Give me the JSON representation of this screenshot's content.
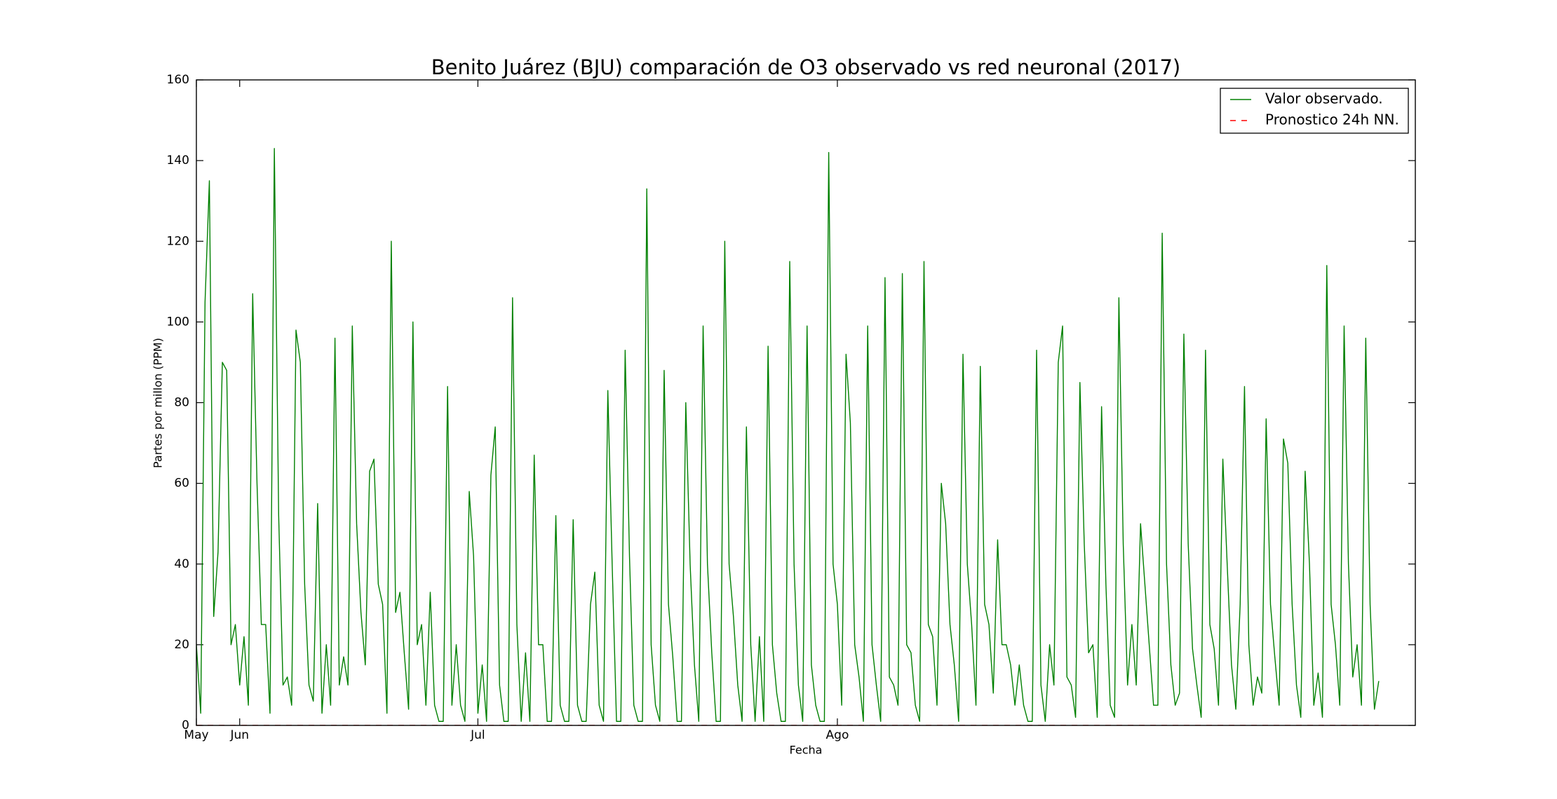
{
  "chart_data": {
    "type": "line",
    "title": "Benito Juárez (BJU) comparación de O3 observado vs red neuronal (2017)",
    "x_label": "Fecha",
    "y_label": "Partes por millon (PPM)",
    "categories": [
      "May",
      null,
      null,
      null,
      null,
      null,
      null,
      null,
      null,
      null,
      "Jun",
      null,
      null,
      null,
      null,
      null,
      null,
      null,
      null,
      null,
      null,
      null,
      null,
      null,
      null,
      null,
      null,
      null,
      null,
      null,
      null,
      null,
      null,
      null,
      null,
      null,
      null,
      null,
      null,
      null,
      null,
      null,
      null,
      null,
      null,
      null,
      null,
      null,
      null,
      null,
      null,
      null,
      null,
      null,
      null,
      null,
      null,
      null,
      null,
      null,
      null,
      null,
      null,
      null,
      null,
      "Jul",
      null,
      null,
      null,
      null,
      null,
      null,
      null,
      null,
      null,
      null,
      null,
      null,
      null,
      null,
      null,
      null,
      null,
      null,
      null,
      null,
      null,
      null,
      null,
      null,
      null,
      null,
      null,
      null,
      null,
      null,
      null,
      null,
      null,
      null,
      null,
      null,
      null,
      null,
      null,
      null,
      null,
      null,
      null,
      null,
      null,
      null,
      null,
      null,
      null,
      null,
      null,
      null,
      null,
      null,
      null,
      null,
      null,
      null,
      null,
      null,
      null,
      null,
      null,
      null,
      null,
      null,
      null,
      null,
      null,
      null,
      null,
      null,
      null,
      null,
      null,
      null,
      null,
      null,
      null,
      null,
      null,
      null,
      "Ago",
      null,
      null,
      null,
      null,
      null,
      null,
      null,
      null,
      null,
      null,
      null,
      null,
      null,
      null,
      null,
      null,
      null,
      null,
      null,
      null,
      null,
      null,
      null,
      null,
      null,
      null,
      null,
      null,
      null,
      null,
      null,
      null,
      null,
      null,
      null,
      null,
      null,
      null,
      null,
      null,
      null,
      null,
      null,
      null,
      null,
      null,
      null,
      null,
      null,
      null,
      null,
      null,
      null,
      null,
      null,
      null,
      null,
      null,
      null,
      null,
      null,
      null,
      null,
      null,
      null,
      null,
      null,
      null,
      null,
      null,
      null,
      null,
      null,
      null,
      null,
      null,
      null,
      null,
      null,
      null,
      null,
      null,
      null,
      null,
      null,
      null,
      null,
      null,
      null,
      null,
      null,
      null,
      null,
      null,
      null,
      null,
      null,
      null,
      null,
      null,
      null,
      null,
      null,
      null,
      null,
      null,
      null,
      null,
      null,
      null,
      null,
      null,
      null,
      null,
      null,
      null,
      null,
      null,
      null,
      null,
      null,
      null,
      null,
      null,
      null
    ],
    "series": [
      {
        "name": "Valor observado.",
        "color": "#008000",
        "dash": false,
        "values": [
          20,
          3,
          105,
          135,
          27,
          43,
          90,
          88,
          20,
          25,
          10,
          22,
          5,
          107,
          60,
          25,
          25,
          3,
          143,
          52,
          10,
          12,
          5,
          98,
          90,
          35,
          10,
          6,
          55,
          3,
          20,
          5,
          96,
          10,
          17,
          10,
          99,
          50,
          28,
          15,
          63,
          66,
          35,
          30,
          3,
          120,
          28,
          33,
          18,
          4,
          100,
          20,
          25,
          5,
          33,
          5,
          1,
          1,
          84,
          5,
          20,
          5,
          1,
          58,
          42,
          3,
          15,
          1,
          62,
          74,
          10,
          1,
          1,
          106,
          25,
          1,
          18,
          1,
          67,
          20,
          20,
          1,
          1,
          52,
          5,
          1,
          1,
          51,
          5,
          1,
          1,
          30,
          38,
          5,
          1,
          83,
          40,
          1,
          1,
          93,
          42,
          5,
          1,
          1,
          133,
          20,
          5,
          1,
          88,
          30,
          17,
          1,
          1,
          80,
          40,
          15,
          1,
          99,
          40,
          18,
          1,
          1,
          120,
          40,
          27,
          10,
          1,
          74,
          20,
          1,
          22,
          1,
          94,
          20,
          8,
          1,
          1,
          115,
          40,
          10,
          1,
          99,
          15,
          5,
          1,
          1,
          142,
          40,
          30,
          5,
          92,
          75,
          20,
          12,
          1,
          99,
          20,
          10,
          1,
          111,
          12,
          10,
          5,
          112,
          20,
          18,
          5,
          1,
          115,
          25,
          22,
          5,
          60,
          50,
          25,
          15,
          1,
          92,
          40,
          25,
          5,
          89,
          30,
          25,
          8,
          46,
          20,
          20,
          15,
          5,
          15,
          5,
          1,
          1,
          93,
          10,
          1,
          20,
          10,
          90,
          99,
          12,
          10,
          2,
          85,
          45,
          18,
          20,
          2,
          79,
          35,
          5,
          2,
          106,
          45,
          10,
          25,
          10,
          50,
          35,
          20,
          5,
          5,
          122,
          40,
          15,
          5,
          8,
          97,
          45,
          19,
          10,
          2,
          93,
          25,
          19,
          5,
          66,
          40,
          15,
          4,
          30,
          84,
          20,
          5,
          12,
          8,
          76,
          30,
          17,
          5,
          71,
          65,
          30,
          10,
          2,
          63,
          40,
          5,
          13,
          2,
          114,
          30,
          20,
          5,
          99,
          40,
          12,
          20,
          5,
          96,
          30,
          4,
          11
        ]
      },
      {
        "name": "Pronostico 24h NN.",
        "color": "#ff0000",
        "dash": true,
        "values": [
          0,
          0,
          0,
          0,
          0,
          0,
          0,
          0,
          0,
          0,
          0,
          0,
          0,
          0,
          0,
          0,
          0,
          0,
          0,
          0,
          0,
          0,
          0,
          0,
          0,
          0,
          0,
          0,
          0,
          0,
          0,
          0,
          0,
          0,
          0,
          0,
          0,
          0,
          0,
          0,
          0,
          0,
          0,
          0,
          0,
          0,
          0,
          0,
          0,
          0,
          0,
          0,
          0,
          0,
          0,
          0,
          0,
          0,
          0,
          0,
          0,
          0,
          0,
          0,
          0,
          0,
          0,
          0,
          0,
          0,
          0,
          0,
          0,
          0,
          0,
          0,
          0,
          0,
          0,
          0,
          0,
          0,
          0,
          0,
          0,
          0,
          0,
          0,
          0,
          0,
          0,
          0,
          0,
          0,
          0,
          0,
          0,
          0,
          0,
          0,
          0,
          0,
          0,
          0,
          0,
          0,
          0,
          0,
          0,
          0,
          0,
          0,
          0,
          0,
          0,
          0,
          0,
          0,
          0,
          0,
          0,
          0,
          0,
          0,
          0,
          0,
          0,
          0,
          0,
          0,
          0,
          0,
          0,
          0,
          0,
          0,
          0,
          0,
          0,
          0,
          0,
          0,
          0,
          0,
          0,
          0,
          0,
          0,
          0,
          0,
          0,
          0,
          0,
          0,
          0,
          0,
          0,
          0,
          0,
          0,
          0,
          0,
          0,
          0,
          0,
          0,
          0,
          0,
          0,
          0,
          0,
          0,
          0,
          0,
          0,
          0,
          0,
          0,
          0,
          0,
          0,
          0,
          0,
          0,
          0,
          0,
          0,
          0,
          0,
          0,
          0,
          0,
          0,
          0,
          0,
          0,
          0,
          0,
          0,
          0,
          0,
          0,
          0,
          0,
          0,
          0,
          0,
          0,
          0,
          0,
          0,
          0,
          0,
          0,
          0,
          0,
          0,
          0,
          0,
          0,
          0,
          0,
          0,
          0,
          0,
          0,
          0,
          0,
          0,
          0,
          0,
          0,
          0,
          0,
          0,
          0,
          0,
          0,
          0,
          0,
          0,
          0,
          0,
          0,
          0,
          0,
          0,
          0,
          0,
          0,
          0,
          0,
          0,
          0,
          0,
          0,
          0,
          0,
          0,
          0,
          0,
          0,
          0,
          0,
          0,
          0,
          0,
          0,
          0,
          0,
          0,
          0,
          0,
          0
        ]
      }
    ],
    "ylim": [
      0,
      160
    ],
    "yticks": [
      0,
      20,
      40,
      60,
      80,
      100,
      120,
      140,
      160
    ],
    "grid": false,
    "legend": "upper right"
  }
}
